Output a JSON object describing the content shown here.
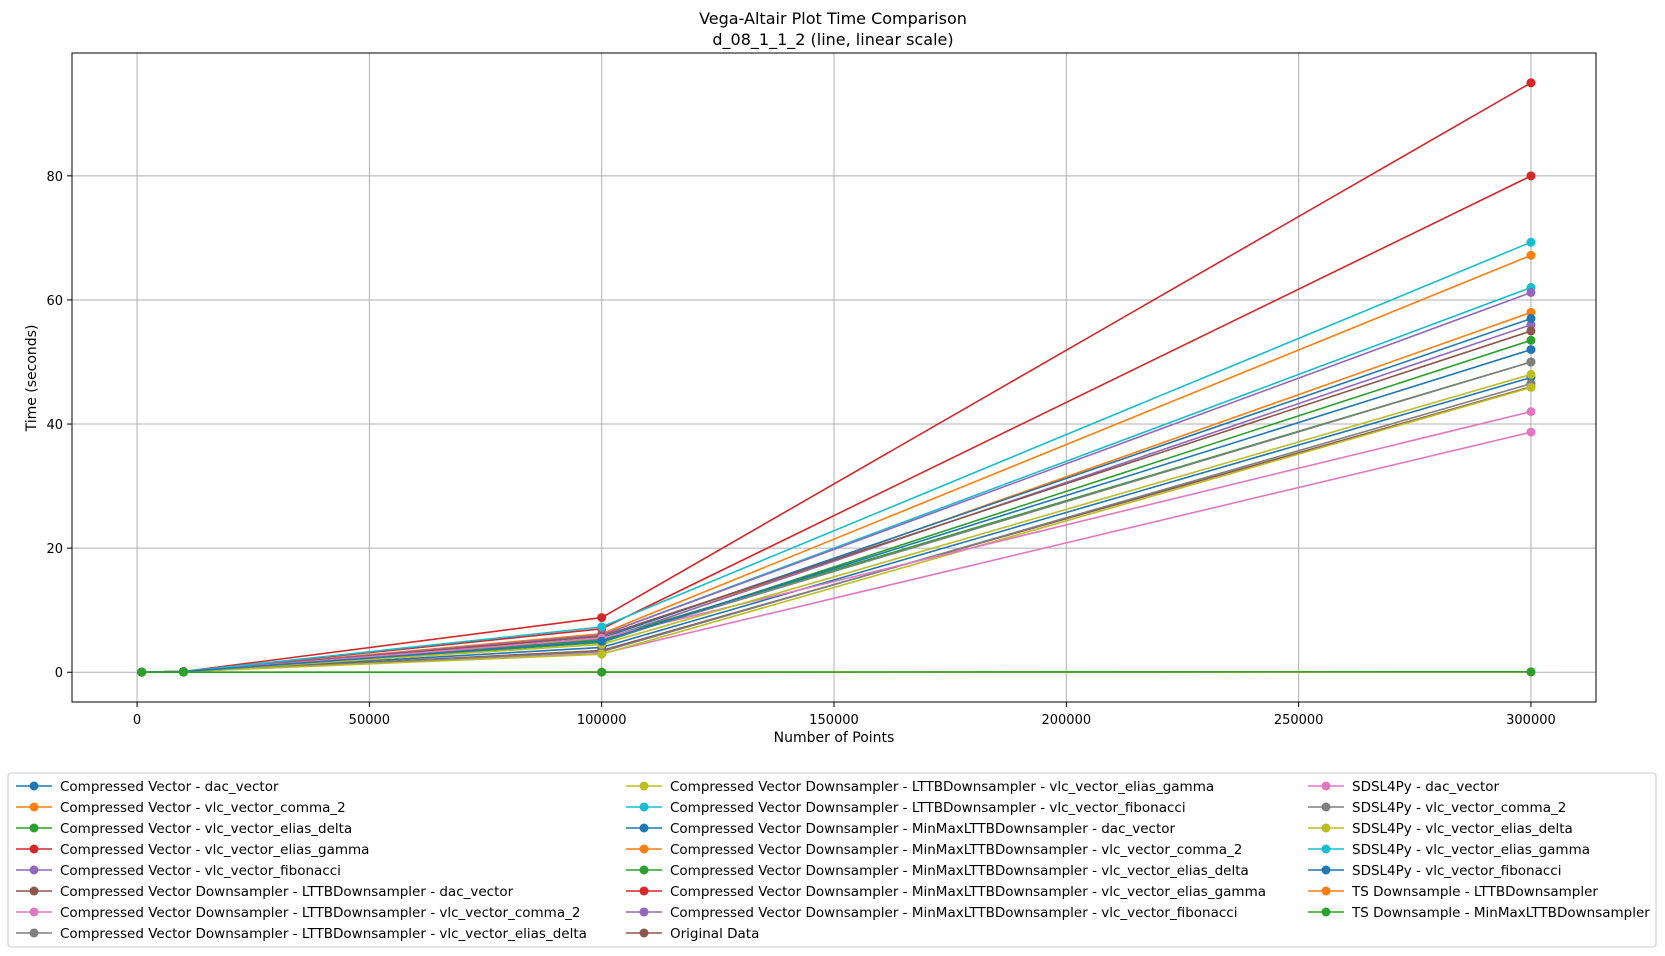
{
  "chart_data": {
    "type": "line",
    "title": "Vega-Altair Plot Time Comparison",
    "subtitle": "d_08_1_1_2 (line, linear scale)",
    "xlabel": "Number of Points",
    "ylabel": "Time (seconds)",
    "xlim": [
      -14000,
      314000
    ],
    "ylim": [
      -4.8,
      99.8
    ],
    "xticks": [
      0,
      50000,
      100000,
      150000,
      200000,
      250000,
      300000
    ],
    "yticks": [
      0,
      20,
      40,
      60,
      80
    ],
    "xtick_labels": [
      "0",
      "50000",
      "100000",
      "150000",
      "200000",
      "250000",
      "300000"
    ],
    "ytick_labels": [
      "0",
      "20",
      "40",
      "60",
      "80"
    ],
    "grid": true,
    "legend_position": "bottom",
    "legend_columns": 3,
    "x": [
      1000,
      10000,
      100000,
      300000
    ],
    "series": [
      {
        "name": "Compressed Vector - dac_vector",
        "color": "#1f77b4",
        "values": [
          0.02,
          0.1,
          4.0,
          47.5
        ]
      },
      {
        "name": "Compressed Vector - vlc_vector_comma_2",
        "color": "#ff7f0e",
        "values": [
          0.02,
          0.1,
          5.0,
          58.0
        ]
      },
      {
        "name": "Compressed Vector - vlc_vector_elias_delta",
        "color": "#2ca02c",
        "values": [
          0.02,
          0.1,
          4.8,
          53.5
        ]
      },
      {
        "name": "Compressed Vector - vlc_vector_elias_gamma",
        "color": "#d62728",
        "values": [
          0.02,
          0.1,
          8.8,
          95.0
        ]
      },
      {
        "name": "Compressed Vector - vlc_vector_fibonacci",
        "color": "#9467bd",
        "values": [
          0.02,
          0.1,
          5.2,
          56.0
        ]
      },
      {
        "name": "Compressed Vector Downsampler - LTTBDownsampler - dac_vector",
        "color": "#8c564b",
        "values": [
          0.02,
          0.1,
          3.5,
          46.0
        ]
      },
      {
        "name": "Compressed Vector Downsampler - LTTBDownsampler - vlc_vector_comma_2",
        "color": "#e377c2",
        "values": [
          0.02,
          0.1,
          3.0,
          38.7
        ]
      },
      {
        "name": "Compressed Vector Downsampler - LTTBDownsampler - vlc_vector_elias_delta",
        "color": "#7f7f7f",
        "values": [
          0.02,
          0.1,
          3.3,
          46.5
        ]
      },
      {
        "name": "Compressed Vector Downsampler - LTTBDownsampler - vlc_vector_elias_gamma",
        "color": "#bcbd22",
        "values": [
          0.02,
          0.1,
          2.9,
          45.9
        ]
      },
      {
        "name": "Compressed Vector Downsampler - LTTBDownsampler - vlc_vector_fibonacci",
        "color": "#17becf",
        "values": [
          0.02,
          0.1,
          6.0,
          62.0
        ]
      },
      {
        "name": "Compressed Vector Downsampler - MinMaxLTTBDownsampler - dac_vector",
        "color": "#1f77b4",
        "values": [
          0.02,
          0.1,
          5.5,
          57.0
        ]
      },
      {
        "name": "Compressed Vector Downsampler - MinMaxLTTBDownsampler - vlc_vector_comma_2",
        "color": "#ff7f0e",
        "values": [
          0.02,
          0.1,
          6.2,
          67.2
        ]
      },
      {
        "name": "Compressed Vector Downsampler - MinMaxLTTBDownsampler - vlc_vector_elias_delta",
        "color": "#2ca02c",
        "values": [
          0.02,
          0.1,
          5.3,
          50.0
        ]
      },
      {
        "name": "Compressed Vector Downsampler - MinMaxLTTBDownsampler - vlc_vector_elias_gamma",
        "color": "#d62728",
        "values": [
          0.02,
          0.1,
          7.0,
          80.0
        ]
      },
      {
        "name": "Compressed Vector Downsampler - MinMaxLTTBDownsampler - vlc_vector_fibonacci",
        "color": "#9467bd",
        "values": [
          0.02,
          0.1,
          6.0,
          61.2
        ]
      },
      {
        "name": "Original Data",
        "color": "#8c564b",
        "values": [
          0.02,
          0.1,
          5.8,
          55.0
        ]
      },
      {
        "name": "SDSL4Py - dac_vector",
        "color": "#e377c2",
        "values": [
          0.02,
          0.1,
          5.5,
          42.0
        ]
      },
      {
        "name": "SDSL4Py - vlc_vector_comma_2",
        "color": "#7f7f7f",
        "values": [
          0.02,
          0.1,
          5.0,
          50.0
        ]
      },
      {
        "name": "SDSL4Py - vlc_vector_elias_delta",
        "color": "#bcbd22",
        "values": [
          0.02,
          0.1,
          4.5,
          48.0
        ]
      },
      {
        "name": "SDSL4Py - vlc_vector_elias_gamma",
        "color": "#17becf",
        "values": [
          0.02,
          0.1,
          7.3,
          69.3
        ]
      },
      {
        "name": "SDSL4Py - vlc_vector_fibonacci",
        "color": "#1f77b4",
        "values": [
          0.02,
          0.1,
          5.0,
          52.0
        ]
      },
      {
        "name": "TS Downsample - LTTBDownsampler",
        "color": "#ff7f0e",
        "values": [
          0.01,
          0.01,
          0.02,
          0.05
        ]
      },
      {
        "name": "TS Downsample - MinMaxLTTBDownsampler",
        "color": "#2ca02c",
        "values": [
          0.01,
          0.01,
          0.02,
          0.06
        ]
      }
    ]
  }
}
